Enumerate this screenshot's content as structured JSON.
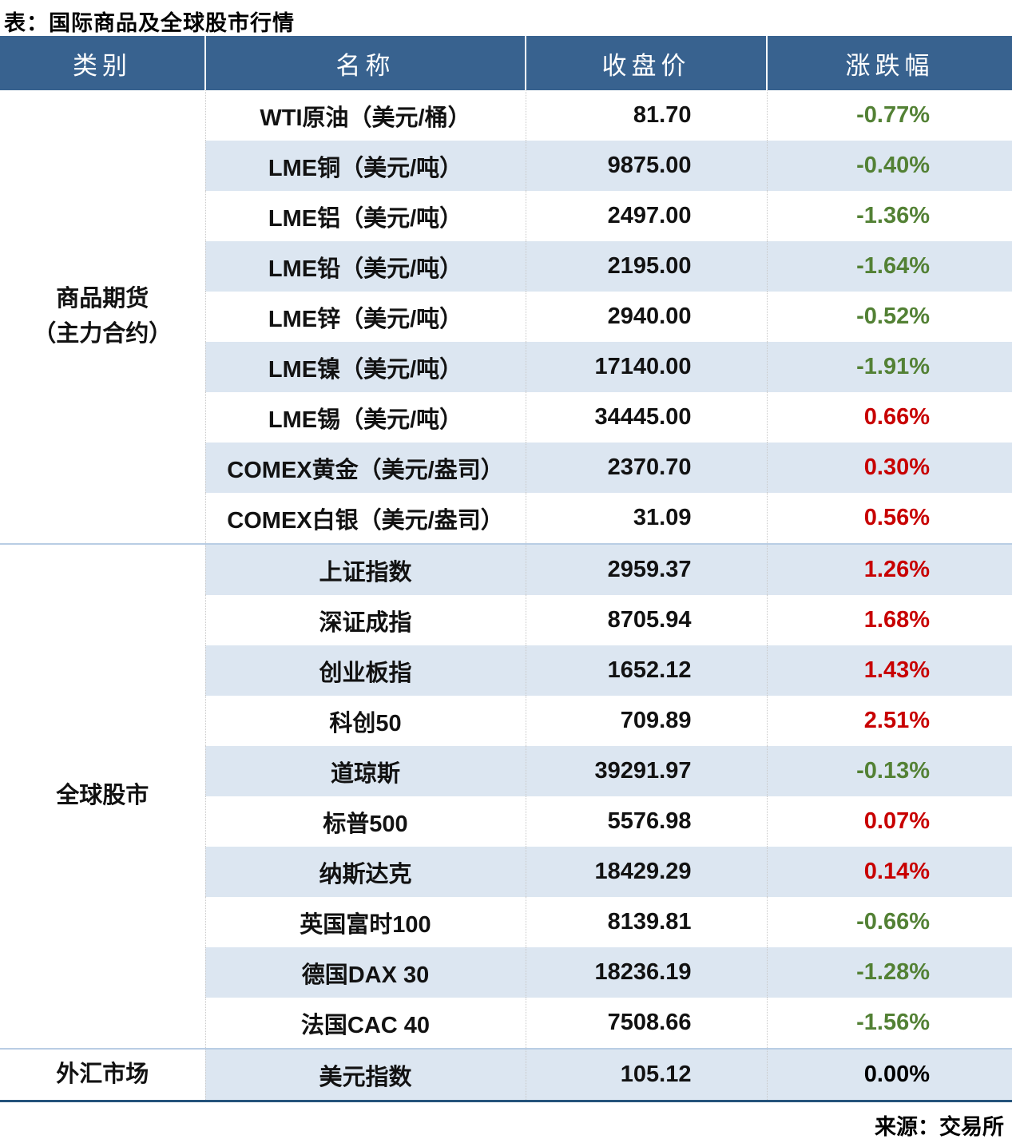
{
  "title": "表：国际商品及全球股市行情",
  "source": "来源：交易所",
  "colors": {
    "header_bg": "#38628f",
    "header_text": "#ffffff",
    "stripe_bg": "#dce6f1",
    "rise_red": "#c80000",
    "fall_green": "#538135",
    "flat_black": "#000000",
    "section_divider": "#b9cde4",
    "table_bottom_border": "#24537b"
  },
  "table": {
    "headers": [
      "类别",
      "名称",
      "收盘价",
      "涨跌幅"
    ],
    "sections": [
      {
        "category_lines": [
          "商品期货",
          "（主力合约）"
        ],
        "rows": [
          {
            "name": "WTI原油（美元/桶）",
            "close": "81.70",
            "change": "-0.77%",
            "dir": "down"
          },
          {
            "name": "LME铜（美元/吨）",
            "close": "9875.00",
            "change": "-0.40%",
            "dir": "down"
          },
          {
            "name": "LME铝（美元/吨）",
            "close": "2497.00",
            "change": "-1.36%",
            "dir": "down"
          },
          {
            "name": "LME铅（美元/吨）",
            "close": "2195.00",
            "change": "-1.64%",
            "dir": "down"
          },
          {
            "name": "LME锌（美元/吨）",
            "close": "2940.00",
            "change": "-0.52%",
            "dir": "down"
          },
          {
            "name": "LME镍（美元/吨）",
            "close": "17140.00",
            "change": "-1.91%",
            "dir": "down"
          },
          {
            "name": "LME锡（美元/吨）",
            "close": "34445.00",
            "change": "0.66%",
            "dir": "up"
          },
          {
            "name": "COMEX黄金（美元/盎司）",
            "close": "2370.70",
            "change": "0.30%",
            "dir": "up"
          },
          {
            "name": "COMEX白银（美元/盎司）",
            "close": "31.09",
            "change": "0.56%",
            "dir": "up"
          }
        ]
      },
      {
        "category_lines": [
          "全球股市"
        ],
        "rows": [
          {
            "name": "上证指数",
            "close": "2959.37",
            "change": "1.26%",
            "dir": "up"
          },
          {
            "name": "深证成指",
            "close": "8705.94",
            "change": "1.68%",
            "dir": "up"
          },
          {
            "name": "创业板指",
            "close": "1652.12",
            "change": "1.43%",
            "dir": "up"
          },
          {
            "name": "科创50",
            "close": "709.89",
            "change": "2.51%",
            "dir": "up"
          },
          {
            "name": "道琼斯",
            "close": "39291.97",
            "change": "-0.13%",
            "dir": "down"
          },
          {
            "name": "标普500",
            "close": "5576.98",
            "change": "0.07%",
            "dir": "up"
          },
          {
            "name": "纳斯达克",
            "close": "18429.29",
            "change": "0.14%",
            "dir": "up"
          },
          {
            "name": "英国富时100",
            "close": "8139.81",
            "change": "-0.66%",
            "dir": "down"
          },
          {
            "name": "德国DAX 30",
            "close": "18236.19",
            "change": "-1.28%",
            "dir": "down"
          },
          {
            "name": "法国CAC 40",
            "close": "7508.66",
            "change": "-1.56%",
            "dir": "down"
          }
        ]
      },
      {
        "category_lines": [
          "外汇市场"
        ],
        "rows": [
          {
            "name": "美元指数",
            "close": "105.12",
            "change": "0.00%",
            "dir": "flat"
          }
        ]
      }
    ]
  },
  "chart_data": {
    "type": "table",
    "title": "表：国际商品及全球股市行情",
    "columns": [
      "类别",
      "名称",
      "收盘价",
      "涨跌幅"
    ],
    "rows": [
      [
        "商品期货（主力合约）",
        "WTI原油（美元/桶）",
        81.7,
        "-0.77%"
      ],
      [
        "商品期货（主力合约）",
        "LME铜（美元/吨）",
        9875.0,
        "-0.40%"
      ],
      [
        "商品期货（主力合约）",
        "LME铝（美元/吨）",
        2497.0,
        "-1.36%"
      ],
      [
        "商品期货（主力合约）",
        "LME铅（美元/吨）",
        2195.0,
        "-1.64%"
      ],
      [
        "商品期货（主力合约）",
        "LME锌（美元/吨）",
        2940.0,
        "-0.52%"
      ],
      [
        "商品期货（主力合约）",
        "LME镍（美元/吨）",
        17140.0,
        "-1.91%"
      ],
      [
        "商品期货（主力合约）",
        "LME锡（美元/吨）",
        34445.0,
        "0.66%"
      ],
      [
        "商品期货（主力合约）",
        "COMEX黄金（美元/盎司）",
        2370.7,
        "0.30%"
      ],
      [
        "商品期货（主力合约）",
        "COMEX白银（美元/盎司）",
        31.09,
        "0.56%"
      ],
      [
        "全球股市",
        "上证指数",
        2959.37,
        "1.26%"
      ],
      [
        "全球股市",
        "深证成指",
        8705.94,
        "1.68%"
      ],
      [
        "全球股市",
        "创业板指",
        1652.12,
        "1.43%"
      ],
      [
        "全球股市",
        "科创50",
        709.89,
        "2.51%"
      ],
      [
        "全球股市",
        "道琼斯",
        39291.97,
        "-0.13%"
      ],
      [
        "全球股市",
        "标普500",
        5576.98,
        "0.07%"
      ],
      [
        "全球股市",
        "纳斯达克",
        18429.29,
        "0.14%"
      ],
      [
        "全球股市",
        "英国富时100",
        8139.81,
        "-0.66%"
      ],
      [
        "全球股市",
        "德国DAX 30",
        18236.19,
        "-1.28%"
      ],
      [
        "全球股市",
        "法国CAC 40",
        7508.66,
        "-1.56%"
      ],
      [
        "外汇市场",
        "美元指数",
        105.12,
        "0.00%"
      ]
    ],
    "notes": "涨跌幅颜色：红=上涨，绿=下跌，黑=持平；来源：交易所"
  }
}
